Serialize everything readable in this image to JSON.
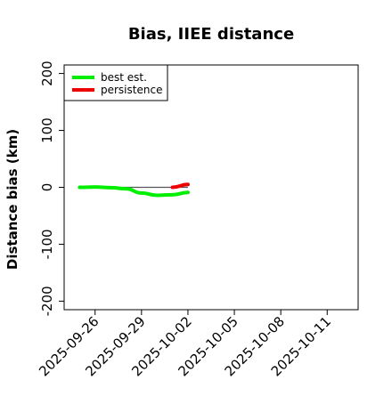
{
  "chart_data": {
    "type": "line",
    "title": "Bias, IIEE distance",
    "xlabel": "",
    "ylabel": "Distance bias (km)",
    "xlim": [
      "2025-09-24",
      "2025-10-13"
    ],
    "ylim": [
      -215,
      215
    ],
    "yticks": [
      -200,
      -100,
      0,
      100,
      200
    ],
    "ytick_labels": [
      "-200",
      "-100",
      "0",
      "100",
      "200"
    ],
    "xticks": [
      "2025-09-26",
      "2025-09-29",
      "2025-10-02",
      "2025-10-05",
      "2025-10-08",
      "2025-10-11"
    ],
    "xtick_labels": [
      "2025-09-26",
      "2025-09-29",
      "2025-10-02",
      "2025-10-05",
      "2025-10-08",
      "2025-10-11"
    ],
    "zero_line": {
      "y": 0,
      "x_from": "2025-09-25",
      "x_to": "2025-10-02",
      "color": "#555555"
    },
    "legend_position": "top-left",
    "grid": false,
    "series": [
      {
        "name": "best est.",
        "color": "#00ee00",
        "x": [
          "2025-09-25",
          "2025-09-26",
          "2025-09-27",
          "2025-09-28",
          "2025-09-29",
          "2025-09-30",
          "2025-10-01",
          "2025-10-02"
        ],
        "y": [
          0,
          0.5,
          -0.5,
          -2.5,
          -10,
          -14,
          -13,
          -9
        ]
      },
      {
        "name": "persistence",
        "color": "#ee0000",
        "x": [
          "2025-10-01",
          "2025-10-02"
        ],
        "y": [
          0,
          5
        ]
      }
    ]
  }
}
